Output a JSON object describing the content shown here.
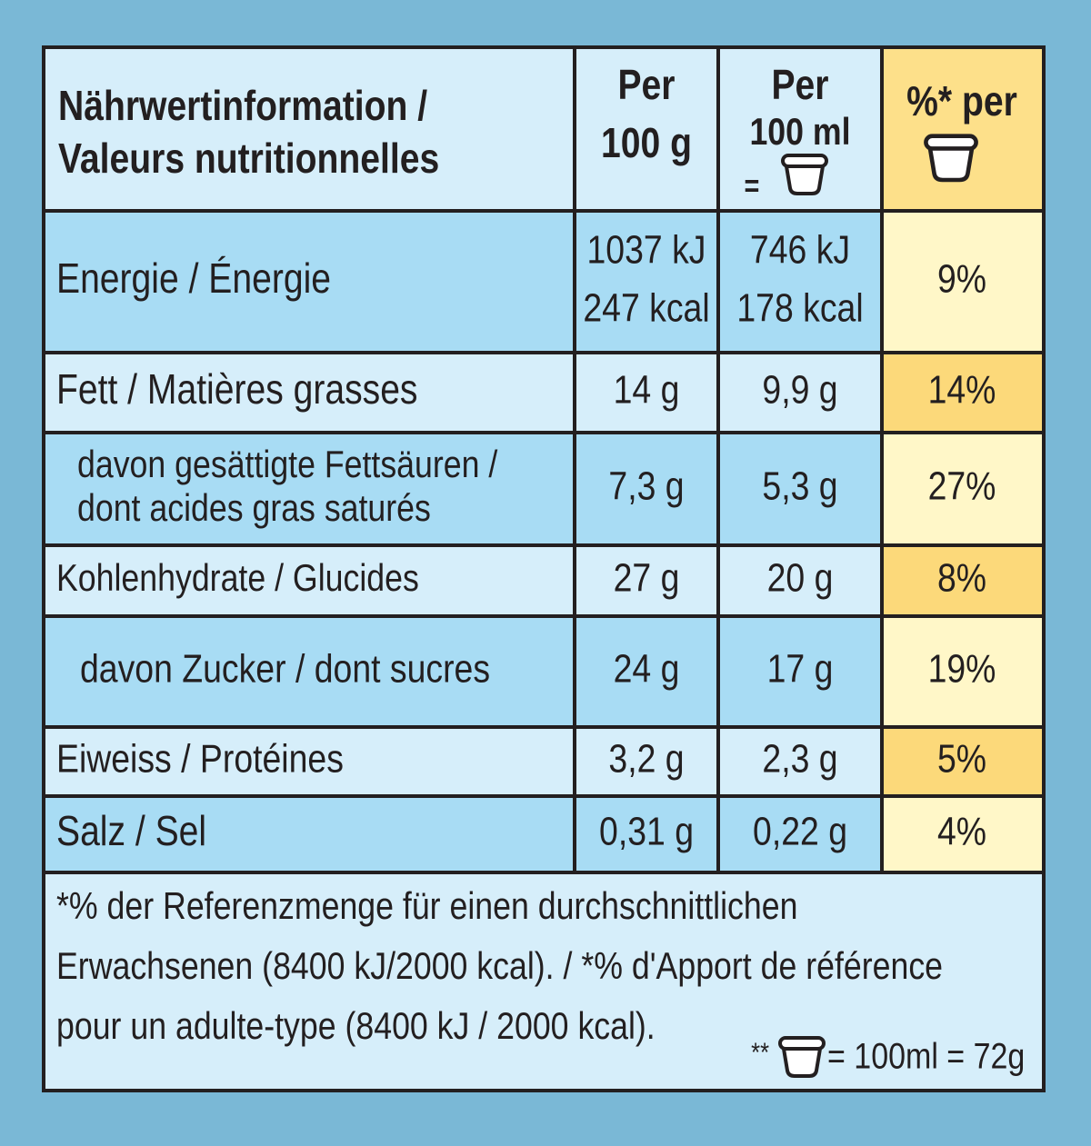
{
  "header": {
    "label": [
      "Nährwertinformation /",
      "Valeurs nutritionnelles"
    ],
    "per_100g": [
      "Per",
      "100 g"
    ],
    "per_100ml": [
      "Per",
      "100 ml",
      "="
    ],
    "percent": "%* per"
  },
  "rows": [
    {
      "label": [
        "Energie / Énergie"
      ],
      "per_100g": [
        "1037 kJ",
        "247 kcal"
      ],
      "per_100ml": [
        "746 kJ",
        "178 kcal"
      ],
      "percent": "9%"
    },
    {
      "label": [
        "Fett / Matières grasses"
      ],
      "per_100g": [
        "14 g"
      ],
      "per_100ml": [
        "9,9 g"
      ],
      "percent": "14%"
    },
    {
      "label": [
        "davon gesättigte Fettsäuren /",
        "dont acides gras saturés"
      ],
      "per_100g": [
        "7,3 g"
      ],
      "per_100ml": [
        "5,3 g"
      ],
      "percent": "27%"
    },
    {
      "label": [
        "Kohlenhydrate / Glucides"
      ],
      "per_100g": [
        "27 g"
      ],
      "per_100ml": [
        "20 g"
      ],
      "percent": "8%"
    },
    {
      "label": [
        "davon Zucker / dont sucres"
      ],
      "per_100g": [
        "24 g"
      ],
      "per_100ml": [
        "17 g"
      ],
      "percent": "19%"
    },
    {
      "label": [
        "Eiweiss / Protéines"
      ],
      "per_100g": [
        "3,2 g"
      ],
      "per_100ml": [
        "2,3 g"
      ],
      "percent": "5%"
    },
    {
      "label": [
        "Salz / Sel"
      ],
      "per_100g": [
        "0,31 g"
      ],
      "per_100ml": [
        "0,22 g"
      ],
      "percent": "4%"
    }
  ],
  "footnote": {
    "lines": [
      "*% der Referenzmenge für einen durchschnittlichen",
      "Erwachsenen (8400 kJ/2000 kcal). / *% d'Apport de référence",
      "pour un adulte-type (8400 kJ / 2000 kcal)."
    ],
    "portion_prefix": "**",
    "portion_text": "= 100ml = 72g"
  }
}
